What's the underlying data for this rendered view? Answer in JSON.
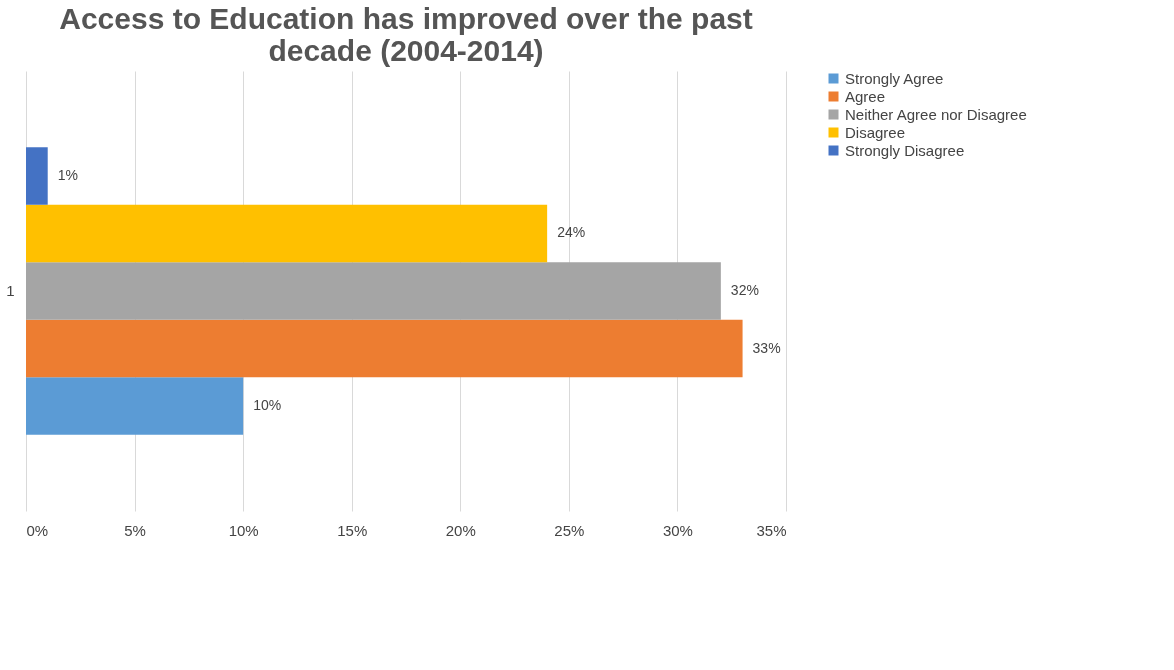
{
  "chart_data": {
    "type": "bar",
    "orientation": "horizontal",
    "title": "Access to Education has improved over the past decade (2004-2014)",
    "categories": [
      "1"
    ],
    "series": [
      {
        "name": "Strongly Agree",
        "color": "#5b9bd5",
        "values": [
          10
        ],
        "value_labels": [
          "10%"
        ]
      },
      {
        "name": "Agree",
        "color": "#ed7d31",
        "values": [
          33
        ],
        "value_labels": [
          "33%"
        ]
      },
      {
        "name": "Neither Agree nor Disagree",
        "color": "#a5a5a5",
        "values": [
          32
        ],
        "value_labels": [
          "32%"
        ]
      },
      {
        "name": "Disagree",
        "color": "#ffc000",
        "values": [
          24
        ],
        "value_labels": [
          "24%"
        ]
      },
      {
        "name": "Strongly Disagree",
        "color": "#4472c4",
        "values": [
          1
        ],
        "value_labels": [
          "1%"
        ]
      }
    ],
    "xlim": [
      0,
      35
    ],
    "xticks": [
      {
        "value": 0,
        "label": "0%"
      },
      {
        "value": 5,
        "label": "5%"
      },
      {
        "value": 10,
        "label": "10%"
      },
      {
        "value": 15,
        "label": "15%"
      },
      {
        "value": 20,
        "label": "20%"
      },
      {
        "value": 25,
        "label": "25%"
      },
      {
        "value": 30,
        "label": "30%"
      },
      {
        "value": 35,
        "label": "35%"
      }
    ],
    "grid": "x",
    "legend": "right"
  }
}
